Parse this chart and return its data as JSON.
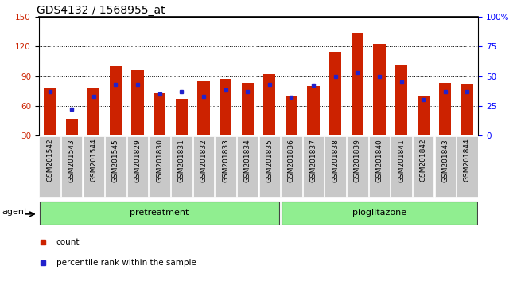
{
  "title": "GDS4132 / 1568955_at",
  "samples": [
    "GSM201542",
    "GSM201543",
    "GSM201544",
    "GSM201545",
    "GSM201829",
    "GSM201830",
    "GSM201831",
    "GSM201832",
    "GSM201833",
    "GSM201834",
    "GSM201835",
    "GSM201836",
    "GSM201837",
    "GSM201838",
    "GSM201839",
    "GSM201840",
    "GSM201841",
    "GSM201842",
    "GSM201843",
    "GSM201844"
  ],
  "count_values": [
    78,
    47,
    78,
    100,
    96,
    73,
    67,
    85,
    87,
    83,
    92,
    70,
    80,
    115,
    133,
    123,
    102,
    70,
    83,
    82
  ],
  "percentile_values": [
    37,
    22,
    33,
    43,
    43,
    35,
    37,
    33,
    38,
    37,
    43,
    32,
    42,
    50,
    53,
    50,
    45,
    30,
    37,
    37
  ],
  "n_pretreatment": 11,
  "n_pioglitazone": 9,
  "bar_color": "#cc2200",
  "dot_color": "#2222cc",
  "ylim_left": [
    30,
    150
  ],
  "ylim_right": [
    0,
    100
  ],
  "yticks_left": [
    30,
    60,
    90,
    120,
    150
  ],
  "yticks_right": [
    0,
    25,
    50,
    75,
    100
  ],
  "grid_lines": [
    60,
    90,
    120
  ],
  "plot_bg": "#ffffff",
  "tick_bg": "#c8c8c8",
  "group_bg": "#90ee90",
  "agent_label": "agent",
  "pretreatment_label": "pretreatment",
  "pioglitazone_label": "pioglitazone",
  "legend_count": "count",
  "legend_percentile": "percentile rank within the sample",
  "title_fontsize": 10,
  "tick_fontsize": 6.5,
  "label_fontsize": 8,
  "legend_fontsize": 7.5
}
